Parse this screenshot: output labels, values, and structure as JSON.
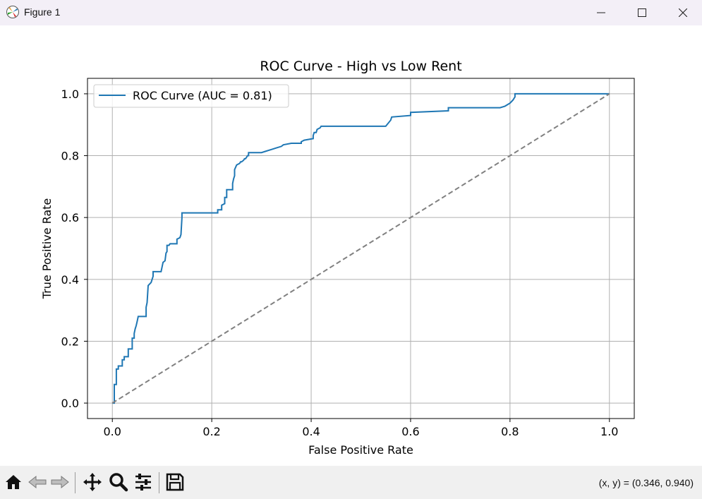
{
  "window": {
    "title": "Figure 1",
    "minimize_icon": "minimize-icon",
    "maximize_icon": "maximize-icon",
    "close_icon": "close-icon"
  },
  "toolbar": {
    "buttons": [
      "home-icon",
      "back-icon",
      "forward-icon",
      "pan-icon",
      "zoom-icon",
      "configure-subplots-icon",
      "save-icon"
    ],
    "coords": "(x, y) = (0.346, 0.940)"
  },
  "colors": {
    "roc": "#1f77b4",
    "diagonal": "#808080",
    "grid": "#b0b0b0",
    "titlebar": "#f3eff7",
    "toolbar": "#f0f0f0"
  },
  "chart_data": {
    "type": "line",
    "title": "ROC Curve - High vs Low Rent",
    "xlabel": "False Positive Rate",
    "ylabel": "True Positive Rate",
    "xlim": [
      -0.05,
      1.05
    ],
    "ylim": [
      -0.05,
      1.05
    ],
    "xticks": [
      "0.0",
      "0.2",
      "0.4",
      "0.6",
      "0.8",
      "1.0"
    ],
    "yticks": [
      "0.0",
      "0.2",
      "0.4",
      "0.6",
      "0.8",
      "1.0"
    ],
    "grid": true,
    "legend": {
      "position": "top-left",
      "entries": [
        "ROC Curve (AUC = 0.81)"
      ]
    },
    "series": [
      {
        "name": "ROC Curve (AUC = 0.81)",
        "style": "solid",
        "x": [
          0.0,
          0.0,
          0.004,
          0.004,
          0.008,
          0.008,
          0.012,
          0.012,
          0.02,
          0.02,
          0.024,
          0.024,
          0.032,
          0.032,
          0.04,
          0.04,
          0.044,
          0.044,
          0.046,
          0.048,
          0.05,
          0.052,
          0.054,
          0.068,
          0.068,
          0.07,
          0.072,
          0.078,
          0.08,
          0.082,
          0.082,
          0.098,
          0.1,
          0.102,
          0.106,
          0.108,
          0.11,
          0.11,
          0.114,
          0.116,
          0.13,
          0.13,
          0.136,
          0.138,
          0.14,
          0.14,
          0.144,
          0.212,
          0.212,
          0.22,
          0.22,
          0.226,
          0.226,
          0.23,
          0.23,
          0.242,
          0.242,
          0.244,
          0.246,
          0.246,
          0.25,
          0.256,
          0.258,
          0.26,
          0.264,
          0.266,
          0.268,
          0.27,
          0.272,
          0.274,
          0.274,
          0.3,
          0.31,
          0.32,
          0.33,
          0.34,
          0.344,
          0.36,
          0.38,
          0.38,
          0.386,
          0.404,
          0.404,
          0.406,
          0.41,
          0.412,
          0.418,
          0.42,
          0.55,
          0.56,
          0.562,
          0.6,
          0.6,
          0.676,
          0.676,
          0.78,
          0.79,
          0.8,
          0.806,
          0.808,
          0.81,
          0.81,
          1.0
        ],
        "y": [
          0.0,
          0.0,
          0.0,
          0.06,
          0.06,
          0.11,
          0.11,
          0.12,
          0.12,
          0.14,
          0.14,
          0.15,
          0.15,
          0.175,
          0.175,
          0.21,
          0.21,
          0.225,
          0.24,
          0.25,
          0.265,
          0.28,
          0.28,
          0.28,
          0.31,
          0.325,
          0.38,
          0.39,
          0.4,
          0.41,
          0.425,
          0.425,
          0.44,
          0.455,
          0.46,
          0.485,
          0.49,
          0.51,
          0.51,
          0.515,
          0.515,
          0.53,
          0.535,
          0.545,
          0.6,
          0.615,
          0.615,
          0.615,
          0.625,
          0.625,
          0.64,
          0.645,
          0.665,
          0.665,
          0.69,
          0.69,
          0.71,
          0.725,
          0.735,
          0.755,
          0.77,
          0.775,
          0.78,
          0.78,
          0.785,
          0.79,
          0.79,
          0.795,
          0.8,
          0.8,
          0.81,
          0.81,
          0.815,
          0.82,
          0.825,
          0.83,
          0.835,
          0.84,
          0.84,
          0.845,
          0.85,
          0.855,
          0.865,
          0.875,
          0.875,
          0.885,
          0.89,
          0.895,
          0.895,
          0.915,
          0.925,
          0.93,
          0.94,
          0.945,
          0.955,
          0.955,
          0.96,
          0.97,
          0.98,
          0.985,
          0.99,
          1.0,
          1.0
        ]
      },
      {
        "name": "",
        "style": "dashed",
        "x": [
          0.0,
          1.0
        ],
        "y": [
          0.0,
          1.0
        ]
      }
    ]
  }
}
